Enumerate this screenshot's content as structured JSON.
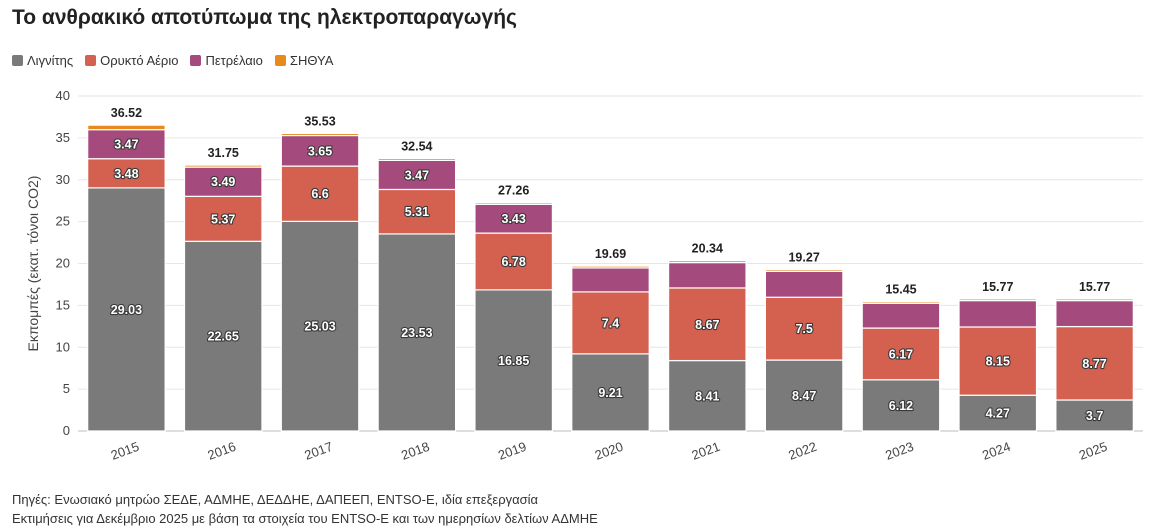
{
  "title": "Το ανθρακικό αποτύπωμα της ηλεκτροπαραγωγής",
  "chart_data": {
    "type": "bar",
    "stacked": true,
    "title": "Το ανθρακικό αποτύπωμα της ηλεκτροπαραγωγής",
    "xlabel": "",
    "ylabel": "Εκπομπές (εκατ. τόνοι CO2)",
    "ylim": [
      0,
      40
    ],
    "yticks": [
      0,
      5,
      10,
      15,
      20,
      25,
      30,
      35,
      40
    ],
    "grid": true,
    "legend_position": "top-left",
    "categories": [
      "2015",
      "2016",
      "2017",
      "2018",
      "2019",
      "2020",
      "2021",
      "2022",
      "2023",
      "2024",
      "2025"
    ],
    "series": [
      {
        "name": "Λιγνίτης",
        "color": "#7a7a7a",
        "values": [
          29.03,
          22.65,
          25.03,
          23.53,
          16.85,
          9.21,
          8.41,
          8.47,
          6.12,
          4.27,
          3.7
        ]
      },
      {
        "name": "Ορυκτό Αέριο",
        "color": "#d4604f",
        "values": [
          3.48,
          5.37,
          6.6,
          5.31,
          6.78,
          7.4,
          8.67,
          7.5,
          6.17,
          8.15,
          8.77
        ]
      },
      {
        "name": "Πετρέλαιο",
        "color": "#a54a7c",
        "values": [
          3.47,
          3.49,
          3.65,
          3.47,
          3.43,
          2.86,
          3.03,
          3.09,
          2.96,
          3.15,
          3.1
        ]
      },
      {
        "name": "ΣΗΘΥΑ",
        "color": "#e8891a",
        "values": [
          0.54,
          0.24,
          0.25,
          0.23,
          0.2,
          0.22,
          0.23,
          0.21,
          0.2,
          0.2,
          0.2
        ]
      }
    ],
    "labeled_series": [
      "Λιγνίτης",
      "Ορυκτό Αέριο",
      "Πετρέλαιο"
    ],
    "label_exceptions": {
      "Πετρέλαιο": [
        "2020",
        "2021",
        "2022",
        "2023",
        "2024",
        "2025"
      ]
    },
    "totals": [
      "36.52",
      "31.75",
      "35.53",
      "32.54",
      "27.26",
      "19.69",
      "20.34",
      "19.27",
      "15.45",
      "15.77",
      "15.77"
    ],
    "segment_labels": {
      "Λιγνίτης": [
        "29.03",
        "22.65",
        "25.03",
        "23.53",
        "16.85",
        "9.21",
        "8.41",
        "8.47",
        "6.12",
        "4.27",
        "3.7"
      ],
      "Ορυκτό Αέριο": [
        "3.48",
        "5.37",
        "6.6",
        "5.31",
        "6.78",
        "7.4",
        "8.67",
        "7.5",
        "6.17",
        "8.15",
        "8.77"
      ],
      "Πετρέλαιο": [
        "3.47",
        "3.49",
        "3.65",
        "3.47",
        "3.43"
      ]
    }
  },
  "footer": {
    "source": "Πηγές: Ενωσιακό μητρώο ΣΕΔΕ, ΑΔΜΗΕ, ΔΕΔΔΗΕ, ΔΑΠΕΕΠ, ENTSO-E, ιδία επεξεργασία",
    "note": "Εκτιμήσεις για Δεκέμβριο 2025 με βάση τα στοιχεία του ENTSO-E και των ημερησίων δελτίων ΑΔΜΗΕ"
  }
}
